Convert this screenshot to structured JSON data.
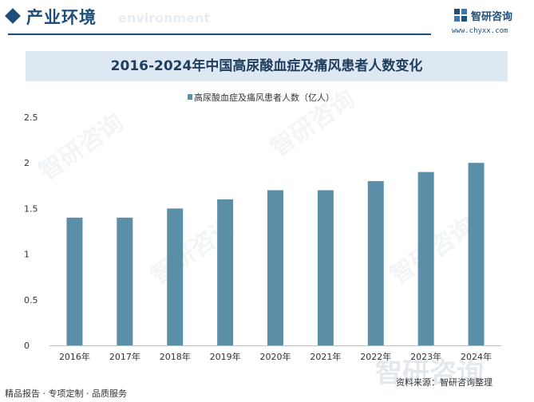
{
  "header": {
    "section_title": "产业环境",
    "section_en": "environment",
    "logo_text": "智研咨询",
    "logo_url": "www.chyxx.com"
  },
  "chart_data": {
    "type": "bar",
    "title": "2016-2024年中国高尿酸血症及痛风患者人数变化",
    "categories": [
      "2016年",
      "2017年",
      "2018年",
      "2019年",
      "2020年",
      "2021年",
      "2022年",
      "2023年",
      "2024年"
    ],
    "series": [
      {
        "name": "高尿酸血症及痛风患者人数（亿人）",
        "values": [
          1.4,
          1.4,
          1.5,
          1.6,
          1.7,
          1.7,
          1.8,
          1.9,
          2.0
        ]
      }
    ],
    "y_ticks": [
      "2.5",
      "2",
      "1.5",
      "1",
      "0.5",
      "0"
    ],
    "ylim": [
      0,
      2.5
    ],
    "xlabel": "",
    "ylabel": "",
    "grid": false,
    "legend_position": "top-center",
    "bar_color": "#5b8fa8"
  },
  "footer": {
    "left": "精品报告 · 专项定制 · 品质服务",
    "source": "资料来源：智研咨询整理"
  },
  "watermark": "智研咨询"
}
